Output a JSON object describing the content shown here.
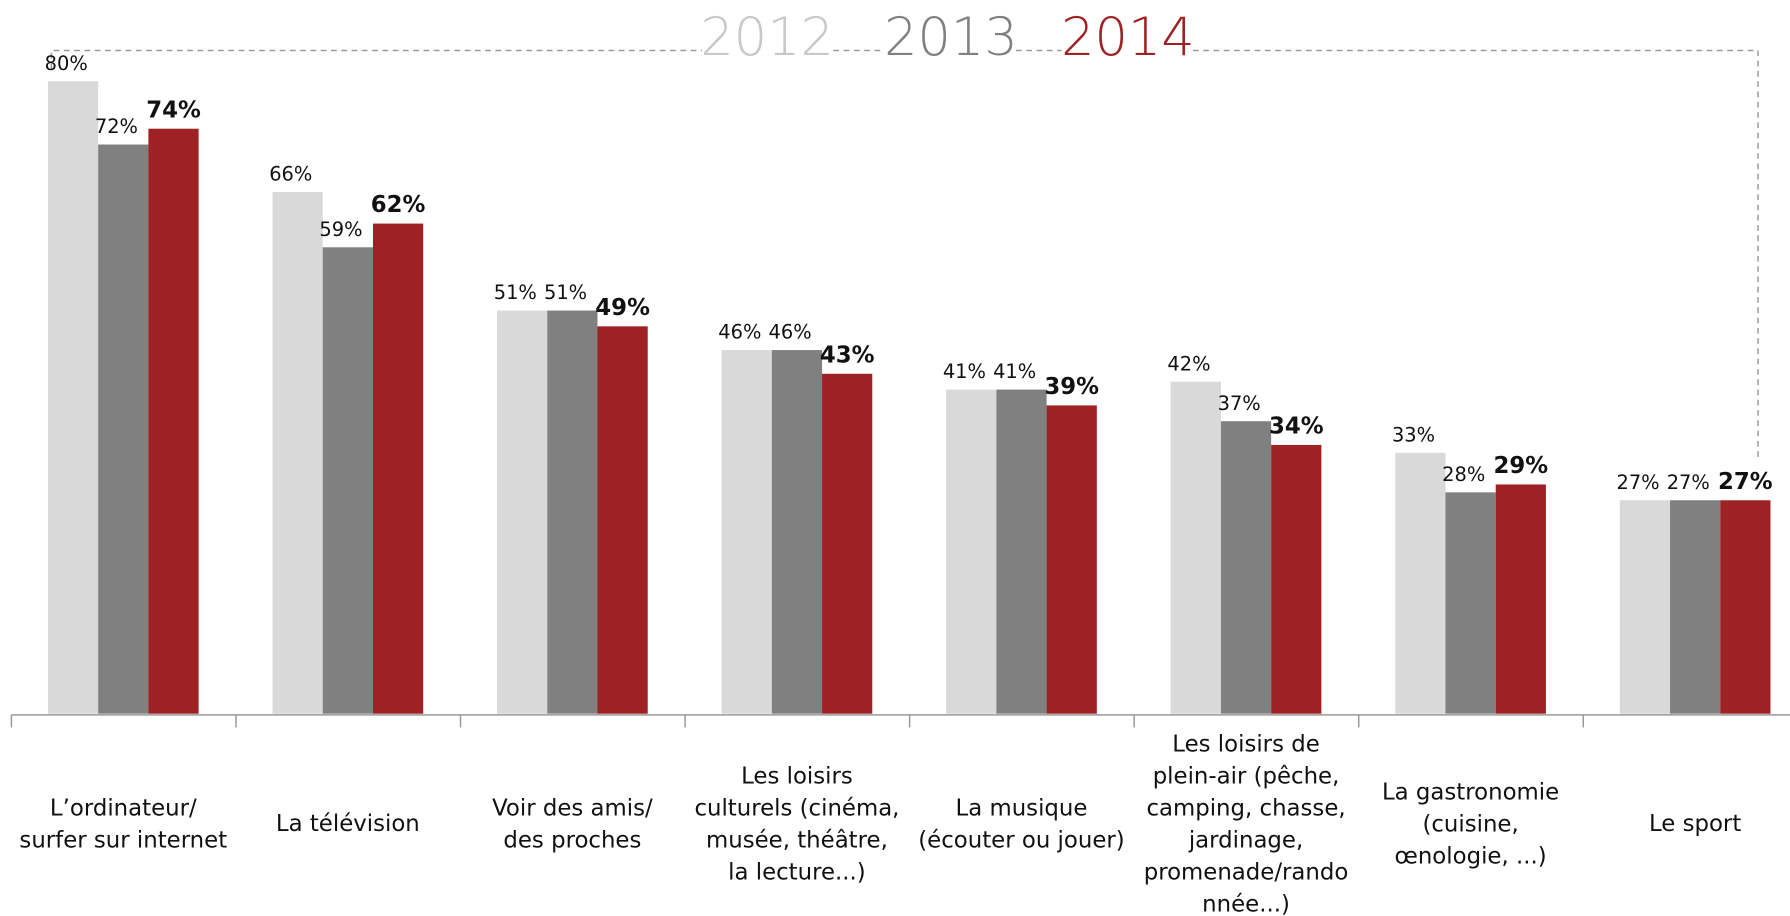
{
  "chart_data": {
    "type": "bar",
    "categories": [
      "L’ordinateur/\nsurfer sur internet",
      "La télévision",
      "Voir des amis/\ndes proches",
      "Les loisirs\nculturels (cinéma,\nmusée, théâtre,\nla lecture...)",
      "La musique\n(écouter ou jouer)",
      "Les loisirs de\nplein-air (pêche,\ncamping, chasse,\njardinage,\npromenade/rando\nnnée...)",
      "La gastronomie\n(cuisine,\nœnologie, ...)",
      "Le sport"
    ],
    "series": [
      {
        "name": "2012",
        "color": "#d9d9d9",
        "values": [
          80,
          66,
          51,
          46,
          41,
          42,
          33,
          27
        ],
        "value_labels": [
          "80%",
          "66%",
          "51%",
          "46%",
          "41%",
          "42%",
          "33%",
          "27%"
        ]
      },
      {
        "name": "2013",
        "color": "#808080",
        "values": [
          72,
          59,
          51,
          46,
          41,
          37,
          28,
          27
        ],
        "value_labels": [
          "72%",
          "59%",
          "51%",
          "46%",
          "41%",
          "37%",
          "28%",
          "27%"
        ]
      },
      {
        "name": "2014",
        "color": "#9e2224",
        "values": [
          74,
          62,
          49,
          43,
          39,
          34,
          29,
          27
        ],
        "value_labels": [
          "74%",
          "62%",
          "49%",
          "43%",
          "39%",
          "34%",
          "29%",
          "27%"
        ]
      }
    ],
    "ylim": [
      0,
      80
    ]
  }
}
